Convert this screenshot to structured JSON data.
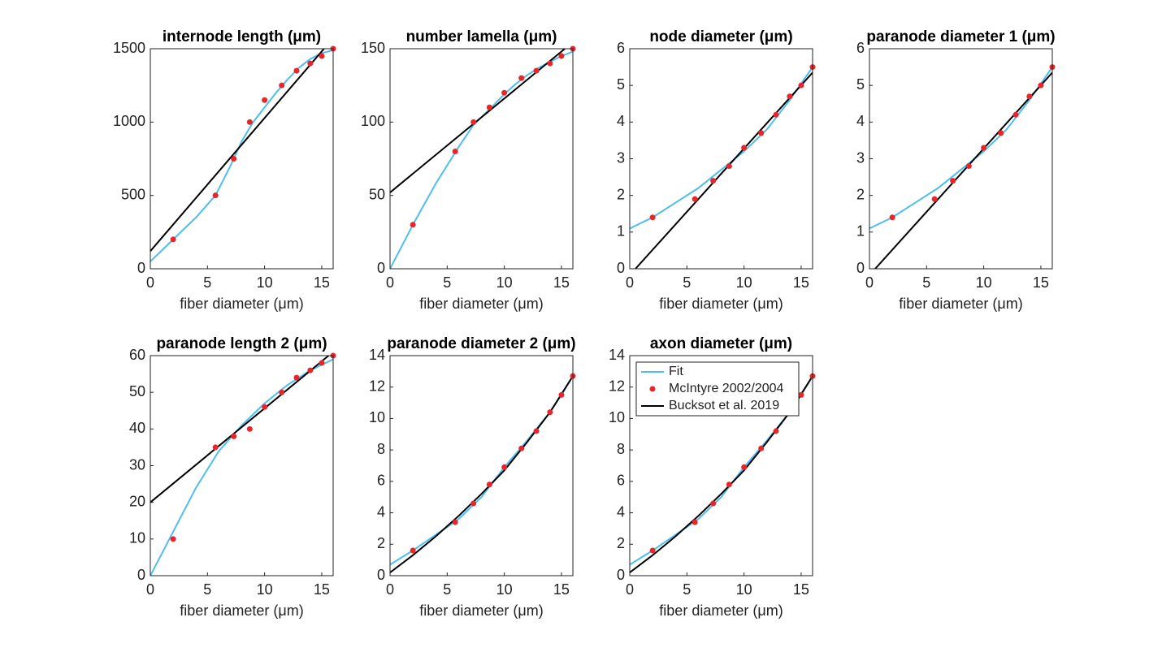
{
  "chart_data": [
    {
      "type": "line",
      "title": "internode length (μm)",
      "xlabel": "fiber diameter (μm)",
      "xlim": [
        0,
        16
      ],
      "xticks": [
        0,
        5,
        10,
        15
      ],
      "ylim": [
        0,
        1500
      ],
      "yticks": [
        0,
        500,
        1000,
        1500
      ],
      "series": [
        {
          "style": "line",
          "color": "#4dbeee",
          "x": [
            0,
            2,
            4,
            5.7,
            7,
            8,
            9,
            10,
            11,
            12,
            13,
            14,
            15,
            16
          ],
          "values": [
            50,
            200,
            350,
            500,
            700,
            870,
            1000,
            1100,
            1200,
            1290,
            1370,
            1430,
            1470,
            1490
          ]
        },
        {
          "style": "scatter",
          "color": "#e8262a",
          "x": [
            2,
            5.7,
            7.3,
            8.7,
            10,
            11.5,
            12.8,
            14,
            15,
            16
          ],
          "values": [
            200,
            500,
            750,
            1000,
            1150,
            1250,
            1350,
            1400,
            1450,
            1500
          ]
        },
        {
          "style": "line",
          "color": "#000000",
          "x": [
            0,
            15.2
          ],
          "values": [
            120,
            1500
          ]
        }
      ]
    },
    {
      "type": "line",
      "title": "number lamella (μm)",
      "xlabel": "fiber diameter (μm)",
      "xlim": [
        0,
        16
      ],
      "xticks": [
        0,
        5,
        10,
        15
      ],
      "ylim": [
        0,
        150
      ],
      "yticks": [
        0,
        50,
        100,
        150
      ],
      "series": [
        {
          "style": "line",
          "color": "#4dbeee",
          "x": [
            0,
            2,
            4,
            6,
            7.3,
            9,
            10,
            11,
            12,
            13,
            14,
            15,
            16
          ],
          "values": [
            0,
            30,
            58,
            83,
            98,
            111,
            119,
            126,
            132,
            137,
            141,
            145,
            148
          ]
        },
        {
          "style": "scatter",
          "color": "#e8262a",
          "x": [
            2,
            5.7,
            7.3,
            8.7,
            10,
            11.5,
            12.8,
            14,
            15,
            16
          ],
          "values": [
            30,
            80,
            100,
            110,
            120,
            130,
            135,
            140,
            145,
            150
          ]
        },
        {
          "style": "line",
          "color": "#000000",
          "x": [
            0,
            15.3
          ],
          "values": [
            52,
            150
          ]
        }
      ]
    },
    {
      "type": "line",
      "title": "node diameter (μm)",
      "xlabel": "fiber diameter (μm)",
      "xlim": [
        0,
        16
      ],
      "xticks": [
        0,
        5,
        10,
        15
      ],
      "ylim": [
        0,
        6
      ],
      "yticks": [
        0,
        1,
        2,
        3,
        4,
        5,
        6
      ],
      "series": [
        {
          "style": "line",
          "color": "#4dbeee",
          "x": [
            0,
            2,
            4,
            6,
            8,
            10,
            12,
            14,
            16
          ],
          "values": [
            1.1,
            1.4,
            1.8,
            2.2,
            2.7,
            3.2,
            3.8,
            4.6,
            5.5
          ]
        },
        {
          "style": "scatter",
          "color": "#e8262a",
          "x": [
            2,
            5.7,
            7.3,
            8.7,
            10,
            11.5,
            12.8,
            14,
            15,
            16
          ],
          "values": [
            1.4,
            1.9,
            2.4,
            2.8,
            3.3,
            3.7,
            4.2,
            4.7,
            5.0,
            5.5
          ]
        },
        {
          "style": "line",
          "color": "#000000",
          "x": [
            0.5,
            16
          ],
          "values": [
            0,
            5.35
          ]
        }
      ]
    },
    {
      "type": "line",
      "title": "paranode diameter 1 (μm)",
      "xlabel": "fiber diameter (μm)",
      "xlim": [
        0,
        16
      ],
      "xticks": [
        0,
        5,
        10,
        15
      ],
      "ylim": [
        0,
        6
      ],
      "yticks": [
        0,
        1,
        2,
        3,
        4,
        5,
        6
      ],
      "series": [
        {
          "style": "line",
          "color": "#4dbeee",
          "x": [
            0,
            2,
            4,
            6,
            8,
            10,
            12,
            14,
            16
          ],
          "values": [
            1.1,
            1.4,
            1.8,
            2.2,
            2.7,
            3.2,
            3.8,
            4.6,
            5.5
          ]
        },
        {
          "style": "scatter",
          "color": "#e8262a",
          "x": [
            2,
            5.7,
            7.3,
            8.7,
            10,
            11.5,
            12.8,
            14,
            15,
            16
          ],
          "values": [
            1.4,
            1.9,
            2.4,
            2.8,
            3.3,
            3.7,
            4.2,
            4.7,
            5.0,
            5.5
          ]
        },
        {
          "style": "line",
          "color": "#000000",
          "x": [
            0.5,
            16
          ],
          "values": [
            0,
            5.35
          ]
        }
      ]
    },
    {
      "type": "line",
      "title": "paranode length 2 (μm)",
      "xlabel": "fiber diameter (μm)",
      "xlim": [
        0,
        16
      ],
      "xticks": [
        0,
        5,
        10,
        15
      ],
      "ylim": [
        0,
        60
      ],
      "yticks": [
        0,
        10,
        20,
        30,
        40,
        50,
        60
      ],
      "series": [
        {
          "style": "line",
          "color": "#4dbeee",
          "x": [
            0,
            2,
            4,
            6,
            8,
            10,
            12,
            14,
            16
          ],
          "values": [
            0,
            12,
            24,
            34,
            41,
            47,
            52,
            56,
            59
          ]
        },
        {
          "style": "scatter",
          "color": "#e8262a",
          "x": [
            2,
            5.7,
            7.3,
            8.7,
            10,
            11.5,
            12.8,
            14,
            15,
            16
          ],
          "values": [
            10,
            35,
            38,
            40,
            46,
            50,
            54,
            56,
            58,
            60
          ]
        },
        {
          "style": "line",
          "color": "#000000",
          "x": [
            0,
            15.6
          ],
          "values": [
            20,
            60
          ]
        }
      ]
    },
    {
      "type": "line",
      "title": "paranode diameter 2 (μm)",
      "xlabel": "fiber diameter (μm)",
      "xlim": [
        0,
        16
      ],
      "xticks": [
        0,
        5,
        10,
        15
      ],
      "ylim": [
        0,
        14
      ],
      "yticks": [
        0,
        2,
        4,
        6,
        8,
        10,
        12,
        14
      ],
      "series": [
        {
          "style": "line",
          "color": "#4dbeee",
          "x": [
            0,
            2,
            4,
            6,
            8,
            10,
            12,
            14,
            15,
            16
          ],
          "values": [
            0.7,
            1.6,
            2.6,
            3.6,
            5.0,
            6.9,
            8.6,
            10.4,
            11.5,
            12.7
          ]
        },
        {
          "style": "scatter",
          "color": "#e8262a",
          "x": [
            2,
            5.7,
            7.3,
            8.7,
            10,
            11.5,
            12.8,
            14,
            15,
            16
          ],
          "values": [
            1.6,
            3.4,
            4.6,
            5.8,
            6.9,
            8.1,
            9.2,
            10.4,
            11.5,
            12.7
          ]
        },
        {
          "style": "line",
          "color": "#000000",
          "x": [
            0,
            2,
            4,
            6,
            8,
            10,
            12,
            14,
            16
          ],
          "values": [
            0.2,
            1.3,
            2.5,
            3.8,
            5.2,
            6.7,
            8.5,
            10.4,
            12.7
          ]
        }
      ]
    },
    {
      "type": "line",
      "title": "axon diameter (μm)",
      "xlabel": "fiber diameter (μm)",
      "xlim": [
        0,
        16
      ],
      "xticks": [
        0,
        5,
        10,
        15
      ],
      "ylim": [
        0,
        14
      ],
      "yticks": [
        0,
        2,
        4,
        6,
        8,
        10,
        12,
        14
      ],
      "legend": "upper left",
      "series": [
        {
          "name": "Fit",
          "style": "line",
          "color": "#4dbeee",
          "x": [
            0,
            2,
            4,
            6,
            8,
            10,
            12,
            14,
            15,
            16
          ],
          "values": [
            0.7,
            1.6,
            2.6,
            3.6,
            5.0,
            6.9,
            8.6,
            10.4,
            11.5,
            12.7
          ]
        },
        {
          "name": "McIntyre 2002/2004",
          "style": "scatter",
          "color": "#e8262a",
          "x": [
            2,
            5.7,
            7.3,
            8.7,
            10,
            11.5,
            12.8,
            14,
            15,
            16
          ],
          "values": [
            1.6,
            3.4,
            4.6,
            5.8,
            6.9,
            8.1,
            9.2,
            10.4,
            11.5,
            12.7
          ]
        },
        {
          "name": "Bucksot et al. 2019",
          "style": "line",
          "color": "#000000",
          "x": [
            0,
            2,
            4,
            6,
            8,
            10,
            12,
            14,
            16
          ],
          "values": [
            0.2,
            1.3,
            2.5,
            3.8,
            5.2,
            6.7,
            8.5,
            10.4,
            12.7
          ]
        }
      ]
    }
  ]
}
